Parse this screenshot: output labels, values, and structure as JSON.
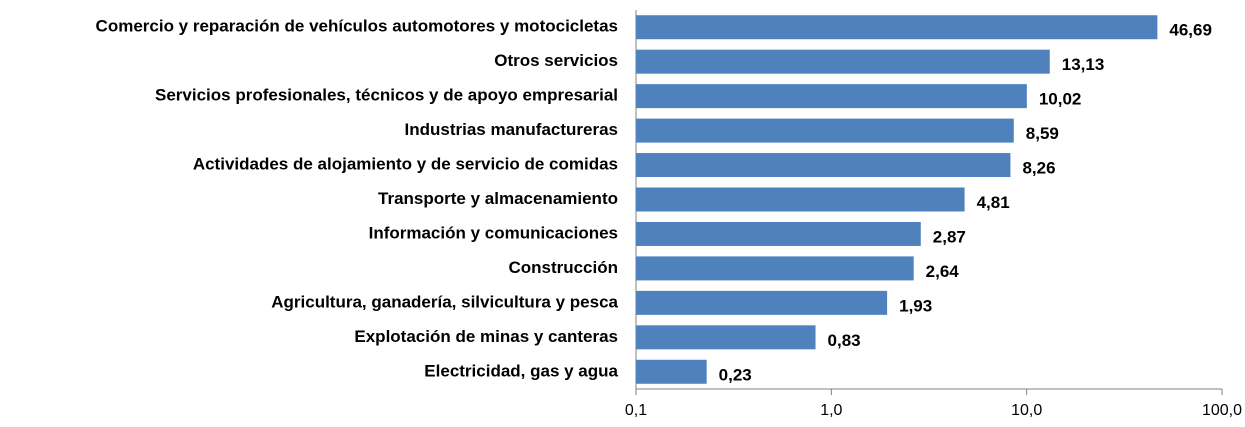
{
  "chart_data": {
    "type": "bar",
    "orientation": "horizontal",
    "log_scale": true,
    "color": "#4f81bd",
    "categories": [
      "Comercio y reparación de vehículos automotores y motocicletas",
      "Otros servicios",
      "Servicios profesionales, técnicos y de apoyo empresarial",
      "Industrias manufactureras",
      "Actividades de alojamiento y de servicio de comidas",
      "Transporte y almacenamiento",
      "Información y comunicaciones",
      "Construcción",
      "Agricultura, ganadería, silvicultura y pesca",
      "Explotación de minas y canteras",
      "Electricidad, gas y agua"
    ],
    "values": [
      46.69,
      13.13,
      10.02,
      8.59,
      8.26,
      4.81,
      2.87,
      2.64,
      1.93,
      0.83,
      0.23
    ],
    "value_labels": [
      "46,69",
      "13,13",
      "10,02",
      "8,59",
      "8,26",
      "4,81",
      "2,87",
      "2,64",
      "1,93",
      "0,83",
      "0,23"
    ],
    "xlim": [
      0.1,
      100
    ],
    "xticks": [
      {
        "value": 0.1,
        "label": "0,1"
      },
      {
        "value": 1,
        "label": "1,0"
      },
      {
        "value": 10,
        "label": "10,0"
      },
      {
        "value": 100,
        "label": "100,0"
      }
    ]
  }
}
